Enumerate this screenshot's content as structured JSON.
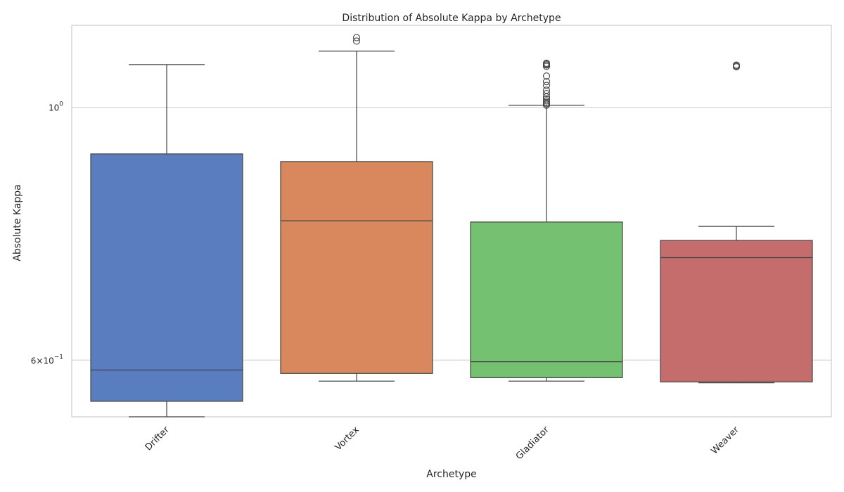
{
  "chart_data": {
    "type": "box",
    "title": "Distribution of Absolute Kappa by Archetype",
    "xlabel": "Archetype",
    "ylabel": "Absolute Kappa",
    "yscale": "log",
    "ylim": [
      0.535,
      1.18
    ],
    "grid": "y-major",
    "y_ticks": [
      {
        "value": 1.0,
        "base": "10",
        "exp": "0",
        "coef": ""
      },
      {
        "value": 0.6,
        "base": "10",
        "exp": "−1",
        "coef": "6×"
      }
    ],
    "categories": [
      "Drifter",
      "Vortex",
      "Gladiator",
      "Weaver"
    ],
    "boxes": [
      {
        "name": "Drifter",
        "color": "#5a7dc0",
        "whislo": 0.535,
        "q1": 0.552,
        "median": 0.588,
        "q3": 0.91,
        "whishi": 1.09,
        "fliers": []
      },
      {
        "name": "Vortex",
        "color": "#d9885e",
        "whislo": 0.575,
        "q1": 0.584,
        "median": 0.795,
        "q3": 0.896,
        "whishi": 1.12,
        "fliers": [
          1.143,
          1.151
        ]
      },
      {
        "name": "Gladiator",
        "color": "#74c171",
        "whislo": 0.575,
        "q1": 0.579,
        "median": 0.598,
        "q3": 0.793,
        "whishi": 1.004,
        "fliers": [
          1.004,
          1.007,
          1.01,
          1.013,
          1.017,
          1.021,
          1.028,
          1.035,
          1.045,
          1.053,
          1.065,
          1.086,
          1.089,
          1.091,
          1.093
        ]
      },
      {
        "name": "Weaver",
        "color": "#c46d6c",
        "whislo": 0.573,
        "q1": 0.574,
        "median": 0.738,
        "q3": 0.764,
        "whishi": 0.786,
        "fliers": [
          1.085,
          1.087,
          1.089
        ]
      }
    ]
  }
}
